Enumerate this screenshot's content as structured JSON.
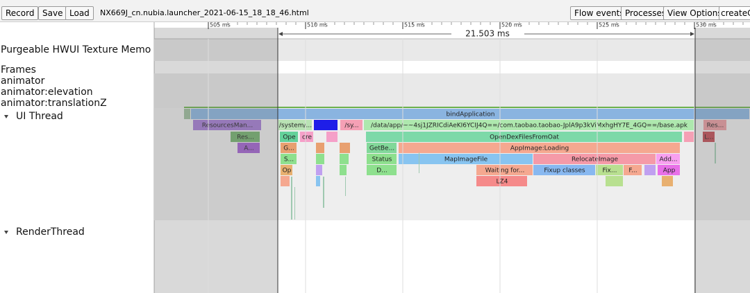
{
  "toolbar": {
    "buttons": [
      "Record",
      "Save",
      "Load"
    ],
    "filename": "NX669J_cn.nubia.launcher_2021-06-15_18_18_46.html",
    "right_buttons": [
      "Flow events",
      "Processes",
      "View Options"
    ],
    "search": "createCl"
  },
  "ruler": {
    "ticks": [
      "505 ms",
      "510 ms",
      "515 ms",
      "520 ms",
      "525 ms",
      "530 ms"
    ],
    "selection": "21.503 ms"
  },
  "tracks": [
    "Purgeable HWUI Texture Memo",
    "Frames",
    "animator",
    "animator:elevation",
    "animator:translationZ",
    "UI Thread",
    "RenderThread"
  ],
  "slices": [
    "bindApplication",
    "ResourcesMan...",
    "/system/...",
    "/sy...",
    "/data/app/~~4sj1JZRICdiAeKI6YCIJ4Q==/com.taobao.taobao-JplA9p3kViMxhgHY7E_4GQ==/base.apk",
    "Res...",
    "Res...",
    "Ope",
    "cre",
    "OpenDexFilesFromOat",
    "L...",
    "A...",
    "G...",
    "GetBe...",
    "AppImage:Loading",
    "S...",
    "Status",
    "MapImageFile",
    "RelocateImage",
    "Add...",
    "Op",
    "D...",
    "Waiting for...",
    "Fixup classes",
    "Fix...",
    "F...",
    "App",
    "LZ4"
  ]
}
